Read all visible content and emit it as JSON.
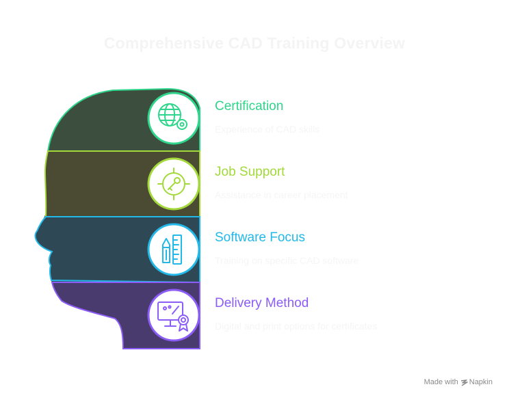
{
  "title": "Comprehensive CAD Training Overview",
  "items": [
    {
      "label": "Certification",
      "description": "Experience of CAD skills",
      "color": "#2ed58a",
      "fill": "#3c4f3f",
      "icon": "globe-certificate-icon"
    },
    {
      "label": "Job Support",
      "description": "Assistance in career placement",
      "color": "#a3d93a",
      "fill": "#4b4b34",
      "icon": "target-key-icon"
    },
    {
      "label": "Software Focus",
      "description": "Training on specific CAD software",
      "color": "#22b8e8",
      "fill": "#2f4855",
      "icon": "pencil-ruler-icon"
    },
    {
      "label": "Delivery Method",
      "description": "Digital and print options for certificates",
      "color": "#8b5cf6",
      "fill": "#4a3b6e",
      "icon": "monitor-certificate-icon"
    }
  ],
  "footer": {
    "made_with": "Made with",
    "brand": "Napkin"
  }
}
